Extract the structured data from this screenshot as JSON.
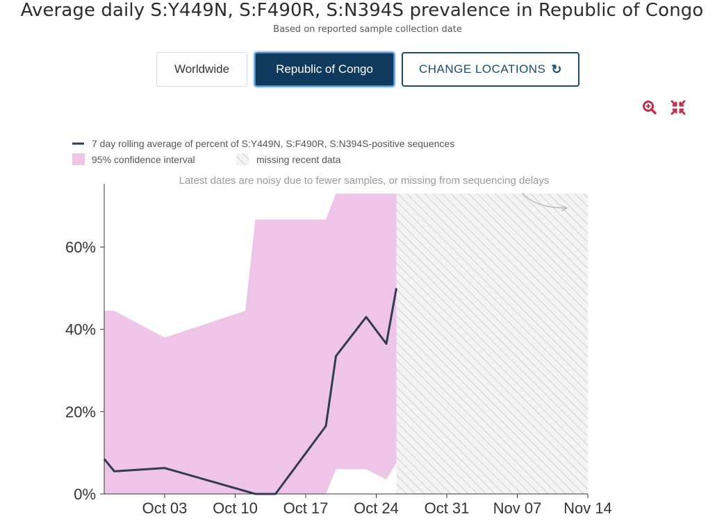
{
  "header": {
    "title": "Average daily S:Y449N, S:F490R, S:N394S prevalence in Republic of Congo",
    "subtitle": "Based on reported sample collection date"
  },
  "location_buttons": {
    "worldwide": "Worldwide",
    "selected": "Republic of Congo",
    "change": "CHANGE LOCATIONS"
  },
  "icons": {
    "zoom": "zoom-in-icon",
    "compress": "compress-icon",
    "refresh": "refresh-icon"
  },
  "legend": {
    "line_label": "7 day rolling average of percent of S:Y449N, S:F490R, S:N394S-positive sequences",
    "ci_label": "95% confidence interval",
    "missing_label": "missing recent data"
  },
  "colors": {
    "line": "#2f3b52",
    "ci": "#eec5e8",
    "button_dark": "#0f3a5e",
    "icon_red": "#c0304a"
  },
  "chart_data": {
    "type": "line",
    "annotation": "Latest dates are noisy due to fewer samples, or missing from sequencing delays",
    "x_ticks": [
      "Oct 03",
      "Oct 10",
      "Oct 17",
      "Oct 24",
      "Oct 31",
      "Nov 07",
      "Nov 14"
    ],
    "y_ticks": [
      "0%",
      "20%",
      "40%",
      "60%"
    ],
    "xlim": [
      "2020-09-27",
      "2020-11-14"
    ],
    "ylim": [
      0,
      73
    ],
    "missing_data_range": [
      "2020-10-26",
      "2020-11-14"
    ],
    "series": [
      {
        "name": "7 day rolling average of percent of S:Y449N, S:F490R, S:N394S-positive sequences",
        "x": [
          "2020-09-27",
          "2020-09-28",
          "2020-10-03",
          "2020-10-12",
          "2020-10-14",
          "2020-10-19",
          "2020-10-20",
          "2020-10-23",
          "2020-10-25",
          "2020-10-26"
        ],
        "values": [
          8.5,
          5.5,
          6.3,
          0,
          0,
          16.5,
          33.5,
          43,
          36.5,
          50
        ]
      }
    ],
    "confidence_interval": {
      "x": [
        "2020-09-27",
        "2020-09-28",
        "2020-10-03",
        "2020-10-11",
        "2020-10-12",
        "2020-10-14",
        "2020-10-19",
        "2020-10-20",
        "2020-10-23",
        "2020-10-25",
        "2020-10-26"
      ],
      "upper": [
        44.5,
        44.5,
        38,
        44.5,
        66.7,
        66.7,
        66.7,
        73,
        73,
        73,
        73
      ],
      "lower": [
        0,
        0,
        0,
        0,
        0,
        0,
        0,
        6,
        6,
        3.5,
        7.5
      ]
    }
  }
}
